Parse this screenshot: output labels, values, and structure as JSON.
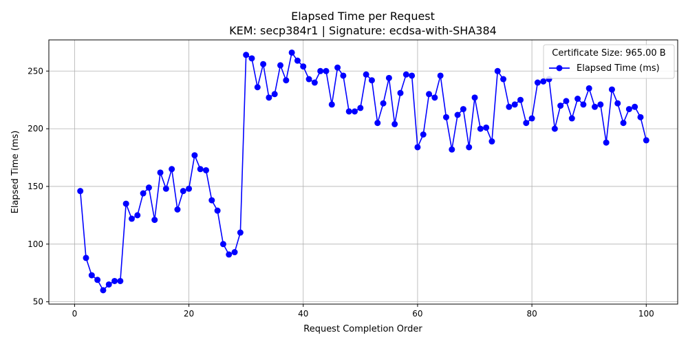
{
  "chart_data": {
    "type": "line",
    "title": "Elapsed Time per Request",
    "subtitle": "KEM: secp384r1 | Signature: ecdsa-with-SHA384",
    "xlabel": "Request Completion Order",
    "ylabel": "Elapsed Time (ms)",
    "xlim": [
      -4.5,
      105.5
    ],
    "ylim": [
      48,
      277
    ],
    "xticks": [
      0,
      20,
      40,
      60,
      80,
      100
    ],
    "yticks": [
      50,
      100,
      150,
      200,
      250
    ],
    "grid": true,
    "legend": {
      "title": "Certificate Size: 965.00 B",
      "placement": "top-right"
    },
    "series": [
      {
        "name": "Elapsed Time (ms)",
        "color": "#0000ff",
        "marker": "circle",
        "x": [
          1,
          2,
          3,
          4,
          5,
          6,
          7,
          8,
          9,
          10,
          11,
          12,
          13,
          14,
          15,
          16,
          17,
          18,
          19,
          20,
          21,
          22,
          23,
          24,
          25,
          26,
          27,
          28,
          29,
          30,
          31,
          32,
          33,
          34,
          35,
          36,
          37,
          38,
          39,
          40,
          41,
          42,
          43,
          44,
          45,
          46,
          47,
          48,
          49,
          50,
          51,
          52,
          53,
          54,
          55,
          56,
          57,
          58,
          59,
          60,
          61,
          62,
          63,
          64,
          65,
          66,
          67,
          68,
          69,
          70,
          71,
          72,
          73,
          74,
          75,
          76,
          77,
          78,
          79,
          80,
          81,
          82,
          83,
          84,
          85,
          86,
          87,
          88,
          89,
          90,
          91,
          92,
          93,
          94,
          95,
          96,
          97,
          98,
          99,
          100
        ],
        "y": [
          146,
          88,
          73,
          69,
          60,
          65,
          68,
          68,
          135,
          122,
          125,
          144,
          149,
          121,
          162,
          148,
          165,
          130,
          146,
          148,
          177,
          165,
          164,
          138,
          129,
          100,
          91,
          93,
          110,
          264,
          261,
          236,
          256,
          227,
          230,
          255,
          242,
          266,
          259,
          254,
          243,
          240,
          250,
          250,
          221,
          253,
          246,
          215,
          215,
          218,
          247,
          242,
          205,
          222,
          244,
          204,
          231,
          247,
          246,
          184,
          195,
          230,
          227,
          246,
          210,
          182,
          212,
          217,
          184,
          227,
          200,
          201,
          189,
          250,
          243,
          219,
          221,
          225,
          205,
          209,
          240,
          241,
          243,
          200,
          220,
          224,
          209,
          226,
          221,
          235,
          219,
          221,
          188,
          234,
          222,
          205,
          217,
          219,
          210,
          190
        ]
      }
    ]
  }
}
